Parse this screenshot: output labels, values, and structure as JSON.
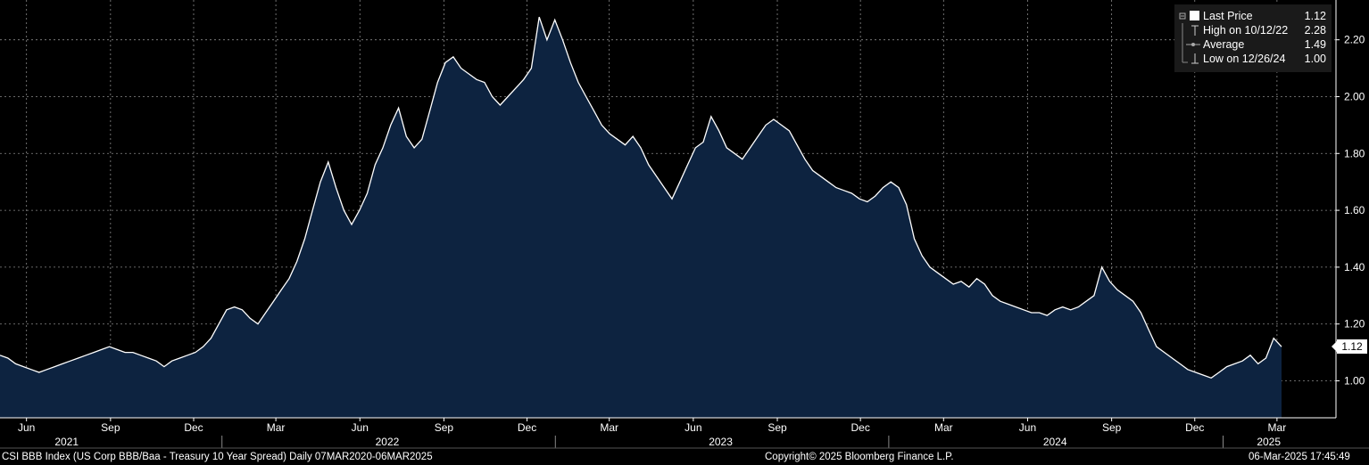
{
  "chart_data": {
    "type": "area",
    "series": [
      {
        "x_start": "2021-05-03",
        "x_end": "2025-03-06",
        "values": [
          1.09,
          1.08,
          1.06,
          1.05,
          1.04,
          1.03,
          1.04,
          1.05,
          1.06,
          1.07,
          1.08,
          1.09,
          1.1,
          1.11,
          1.12,
          1.11,
          1.1,
          1.1,
          1.09,
          1.08,
          1.07,
          1.05,
          1.07,
          1.08,
          1.09,
          1.1,
          1.12,
          1.15,
          1.2,
          1.25,
          1.26,
          1.25,
          1.22,
          1.2,
          1.24,
          1.28,
          1.32,
          1.36,
          1.42,
          1.5,
          1.6,
          1.7,
          1.77,
          1.68,
          1.6,
          1.55,
          1.6,
          1.66,
          1.76,
          1.82,
          1.9,
          1.96,
          1.86,
          1.82,
          1.85,
          1.95,
          2.05,
          2.12,
          2.14,
          2.1,
          2.08,
          2.06,
          2.05,
          2.0,
          1.97,
          2.0,
          2.03,
          2.06,
          2.1,
          2.28,
          2.2,
          2.27,
          2.2,
          2.12,
          2.05,
          2.0,
          1.95,
          1.9,
          1.87,
          1.85,
          1.83,
          1.86,
          1.82,
          1.76,
          1.72,
          1.68,
          1.64,
          1.7,
          1.76,
          1.82,
          1.84,
          1.93,
          1.88,
          1.82,
          1.8,
          1.78,
          1.82,
          1.86,
          1.9,
          1.92,
          1.9,
          1.88,
          1.83,
          1.78,
          1.74,
          1.72,
          1.7,
          1.68,
          1.67,
          1.66,
          1.64,
          1.63,
          1.65,
          1.68,
          1.7,
          1.68,
          1.62,
          1.5,
          1.44,
          1.4,
          1.38,
          1.36,
          1.34,
          1.35,
          1.33,
          1.36,
          1.34,
          1.3,
          1.28,
          1.27,
          1.26,
          1.25,
          1.24,
          1.24,
          1.23,
          1.25,
          1.26,
          1.25,
          1.26,
          1.28,
          1.3,
          1.4,
          1.35,
          1.32,
          1.3,
          1.28,
          1.24,
          1.18,
          1.12,
          1.1,
          1.08,
          1.06,
          1.04,
          1.03,
          1.02,
          1.01,
          1.03,
          1.05,
          1.06,
          1.07,
          1.09,
          1.06,
          1.08,
          1.15,
          1.12
        ]
      }
    ],
    "ylim": [
      0.87,
      2.34
    ],
    "y_ticks": [
      "1.00",
      "1.20",
      "1.40",
      "1.60",
      "1.80",
      "2.00",
      "2.20"
    ],
    "x_month_labels": [
      {
        "label": "Jun",
        "date": "2021-06-01"
      },
      {
        "label": "Sep",
        "date": "2021-09-01"
      },
      {
        "label": "Dec",
        "date": "2021-12-01"
      },
      {
        "label": "Mar",
        "date": "2022-03-01"
      },
      {
        "label": "Jun",
        "date": "2022-06-01"
      },
      {
        "label": "Sep",
        "date": "2022-09-01"
      },
      {
        "label": "Dec",
        "date": "2022-12-01"
      },
      {
        "label": "Mar",
        "date": "2023-03-01"
      },
      {
        "label": "Jun",
        "date": "2023-06-01"
      },
      {
        "label": "Sep",
        "date": "2023-09-01"
      },
      {
        "label": "Dec",
        "date": "2023-12-01"
      },
      {
        "label": "Mar",
        "date": "2024-03-01"
      },
      {
        "label": "Jun",
        "date": "2024-06-01"
      },
      {
        "label": "Sep",
        "date": "2024-09-01"
      },
      {
        "label": "Dec",
        "date": "2024-12-01"
      },
      {
        "label": "Mar",
        "date": "2025-03-01"
      }
    ],
    "x_year_labels": [
      {
        "label": "2021",
        "date": "2021-07-15"
      },
      {
        "label": "2022",
        "date": "2022-07-01"
      },
      {
        "label": "2023",
        "date": "2023-07-01"
      },
      {
        "label": "2024",
        "date": "2024-07-01"
      },
      {
        "label": "2025",
        "date": "2025-02-20"
      }
    ],
    "x_year_dividers": [
      "2022-01-01",
      "2023-01-01",
      "2024-01-01",
      "2025-01-01"
    ],
    "grid": true,
    "legend_position": "top-right"
  },
  "legend": {
    "rows": [
      {
        "label": "Last Price",
        "value": "1.12"
      },
      {
        "label": "High on 10/12/22",
        "value": "2.28"
      },
      {
        "label": "Average",
        "value": "1.49"
      },
      {
        "label": "Low on 12/26/24",
        "value": "1.00"
      }
    ]
  },
  "last_price_tag": "1.12",
  "footer": {
    "description": "CSI BBB Index (US Corp BBB/Baa - Treasury 10 Year Spread)  Daily 07MAR2020-06MAR2025",
    "copyright": "Copyright© 2025 Bloomberg Finance L.P.",
    "timestamp": "06-Mar-2025 17:45:49"
  },
  "colors": {
    "background": "#000000",
    "area_fill": "#0d2340",
    "line": "#ffffff",
    "grid": "#8a8a8a",
    "legend_bg": "#1a1a1a"
  }
}
